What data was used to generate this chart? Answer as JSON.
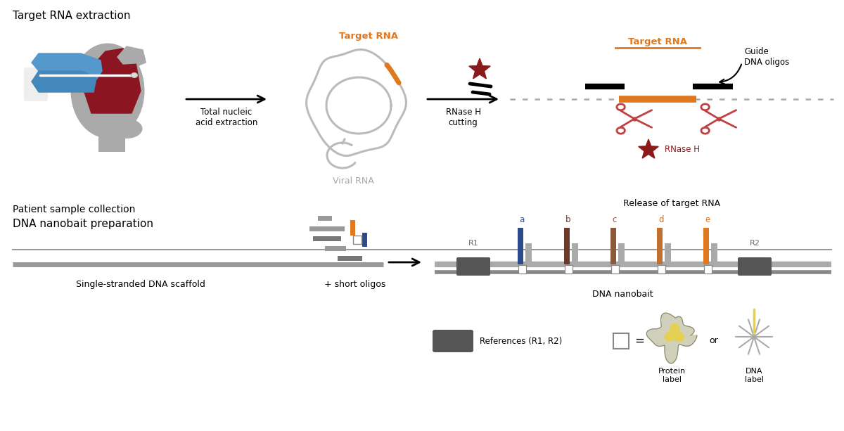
{
  "bg_color": "#ffffff",
  "title_top_left": "Target RNA extraction",
  "title_bottom_left": "DNA nanobait preparation",
  "label_patient": "Patient sample collection",
  "label_viral": "Viral RNA",
  "label_rnase_cutting": "RNase H\ncutting",
  "label_release": "Release of target RNA",
  "label_scaffold": "Single-stranded DNA scaffold",
  "label_short_oligos": "+ short oligos",
  "label_nanobait": "DNA nanobait",
  "label_total_nucleic": "Total nucleic\nacid extraction",
  "label_target_rna": "Target RNA",
  "label_guide_dna": "Guide\nDNA oligos",
  "label_rnase_h": "RNase H",
  "label_references": "References (R1, R2)",
  "label_equals": "=",
  "label_or": "or",
  "label_protein": "Protein\nlabel",
  "label_dna_label": "DNA\nlabel",
  "orange_color": "#E07820",
  "dark_red_color": "#8B1A1A",
  "gray_color": "#AAAAAA",
  "dark_gray_color": "#555555",
  "blue_color": "#2D4A8A",
  "nanobait_colors": [
    "#2D4A8A",
    "#6B3A2A",
    "#8B5A3A",
    "#C07030",
    "#E07820"
  ],
  "nanobait_labels": [
    "a",
    "b",
    "c",
    "d",
    "e"
  ]
}
